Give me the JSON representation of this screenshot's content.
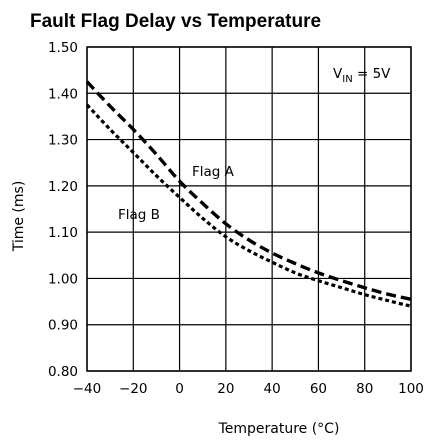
{
  "chart_data": {
    "type": "line",
    "title": "Fault Flag Delay vs Temperature",
    "xlabel": "Temperature (°C)",
    "ylabel": "Time (ms)",
    "xlim": [
      -40,
      100
    ],
    "ylim": [
      0.8,
      1.5
    ],
    "xticks": [
      -40,
      -20,
      0,
      20,
      40,
      60,
      80,
      100
    ],
    "xtick_labels": [
      "−40",
      "−20",
      "0",
      "20",
      "40",
      "60",
      "80",
      "100"
    ],
    "yticks": [
      0.8,
      0.9,
      1.0,
      1.1,
      1.2,
      1.3,
      1.4,
      1.5
    ],
    "ytick_labels": [
      "0.80",
      "0.90",
      "1.00",
      "1.10",
      "1.20",
      "1.30",
      "1.40",
      "1.50"
    ],
    "grid": true,
    "annotation": {
      "prefix": "V",
      "subscript": "IN",
      "suffix": " = 5V"
    },
    "series": [
      {
        "name": "Flag A",
        "style": "dashed",
        "x": [
          -40,
          -30,
          -20,
          -10,
          0,
          10,
          20,
          30,
          40,
          50,
          60,
          70,
          80,
          90,
          100
        ],
        "y": [
          1.425,
          1.372,
          1.322,
          1.268,
          1.21,
          1.162,
          1.118,
          1.083,
          1.055,
          1.032,
          1.012,
          0.995,
          0.98,
          0.966,
          0.955
        ]
      },
      {
        "name": "Flag B",
        "style": "dotted",
        "x": [
          -40,
          -30,
          -20,
          -10,
          0,
          10,
          20,
          30,
          40,
          50,
          60,
          70,
          80,
          90,
          100
        ],
        "y": [
          1.375,
          1.322,
          1.272,
          1.222,
          1.175,
          1.13,
          1.09,
          1.06,
          1.035,
          1.012,
          0.995,
          0.98,
          0.965,
          0.952,
          0.94
        ]
      }
    ]
  }
}
